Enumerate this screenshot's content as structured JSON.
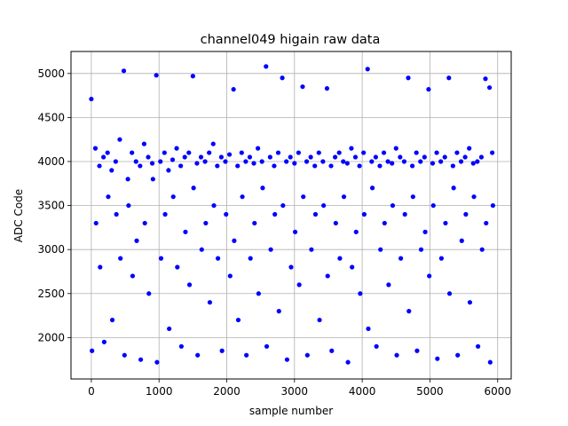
{
  "chart_data": {
    "type": "scatter",
    "title": "channel049 higain raw data",
    "xlabel": "sample number",
    "ylabel": "ADC Code",
    "xlim": [
      -300,
      6200
    ],
    "ylim": [
      1530,
      5250
    ],
    "xticks": [
      0,
      1000,
      2000,
      3000,
      4000,
      5000,
      6000
    ],
    "yticks": [
      2000,
      2500,
      3000,
      3500,
      4000,
      4500,
      5000
    ],
    "grid": true,
    "marker_color": "#0000ff",
    "series": [
      {
        "name": "",
        "x": [
          0,
          60,
          120,
          180,
          240,
          300,
          360,
          420,
          480,
          540,
          600,
          660,
          720,
          780,
          840,
          900,
          960,
          1020,
          1080,
          1140,
          1200,
          1260,
          1320,
          1380,
          1440,
          1500,
          1560,
          1620,
          1680,
          1740,
          1800,
          1860,
          1920,
          1980,
          2040,
          2100,
          2160,
          2220,
          2280,
          2340,
          2400,
          2460,
          2520,
          2580,
          2640,
          2700,
          2760,
          2820,
          2880,
          2940,
          3000,
          3060,
          3120,
          3180,
          3240,
          3300,
          3360,
          3420,
          3480,
          3540,
          3600,
          3660,
          3720,
          3780,
          3840,
          3900,
          3960,
          4020,
          4080,
          4140,
          4200,
          4260,
          4320,
          4380,
          4440,
          4500,
          4560,
          4620,
          4680,
          4740,
          4800,
          4860,
          4920,
          4980,
          5040,
          5100,
          5160,
          5220,
          5280,
          5340,
          5400,
          5460,
          5520,
          5580,
          5640,
          5700,
          5760,
          5820,
          5880,
          5920
        ],
        "y": [
          4710,
          4150,
          3950,
          4050,
          4100,
          3900,
          4000,
          4250,
          5030,
          3800,
          4100,
          4000,
          3950,
          4200,
          4050,
          3980,
          4980,
          4000,
          4100,
          3900,
          4020,
          4150,
          3950,
          4050,
          4100,
          4970,
          3980,
          4050,
          4000,
          4100,
          4200,
          3950,
          4050,
          4000,
          4080,
          4820,
          3950,
          4100,
          4000,
          4050,
          3980,
          4150,
          4000,
          5080,
          4050,
          3950,
          4100,
          4950,
          4000,
          4050,
          3980,
          4100,
          4850,
          4000,
          4050,
          3950,
          4100,
          4000,
          4830,
          3950,
          4050,
          4100,
          4000,
          3980,
          4150,
          4050,
          3950,
          4100,
          5050,
          4000,
          4050,
          3950,
          4100,
          4000,
          3980,
          4150,
          4050,
          4000,
          4950,
          3950,
          4100,
          4000,
          4050,
          4820,
          3980,
          4100,
          4000,
          4050,
          4950,
          3950,
          4100,
          4000,
          4050,
          4150,
          3980,
          4000,
          4050,
          4940,
          4840,
          4100
        ]
      },
      {
        "name": "",
        "x": [
          10,
          70,
          130,
          190,
          250,
          310,
          370,
          430,
          490,
          550,
          610,
          670,
          730,
          790,
          850,
          910,
          970,
          1030,
          1090,
          1150,
          1210,
          1270,
          1330,
          1390,
          1450,
          1510,
          1570,
          1630,
          1690,
          1750,
          1810,
          1870,
          1930,
          1990,
          2050,
          2110,
          2170,
          2230,
          2290,
          2350,
          2410,
          2470,
          2530,
          2590,
          2650,
          2710,
          2770,
          2830,
          2890,
          2950,
          3010,
          3070,
          3130,
          3190,
          3250,
          3310,
          3370,
          3430,
          3490,
          3550,
          3610,
          3670,
          3730,
          3790,
          3850,
          3910,
          3970,
          4030,
          4090,
          4150,
          4210,
          4270,
          4330,
          4390,
          4450,
          4510,
          4570,
          4630,
          4690,
          4750,
          4810,
          4870,
          4930,
          4990,
          5050,
          5110,
          5170,
          5230,
          5290,
          5350,
          5410,
          5470,
          5530,
          5590,
          5650,
          5710,
          5770,
          5830,
          5890,
          5930
        ],
        "y": [
          1850,
          3300,
          2800,
          1950,
          3600,
          2200,
          3400,
          2900,
          1800,
          3500,
          2700,
          3100,
          1750,
          3300,
          2500,
          3800,
          1720,
          2900,
          3400,
          2100,
          3600,
          2800,
          1900,
          3200,
          2600,
          3700,
          1800,
          3000,
          3300,
          2400,
          3500,
          2900,
          1850,
          3400,
          2700,
          3100,
          2200,
          3600,
          1800,
          2900,
          3300,
          2500,
          3700,
          1900,
          3000,
          3400,
          2300,
          3500,
          1750,
          2800,
          3200,
          2600,
          3600,
          1800,
          3000,
          3400,
          2200,
          3500,
          2700,
          1850,
          3300,
          2900,
          3600,
          1720,
          2800,
          3200,
          2500,
          3400,
          2100,
          3700,
          1900,
          3000,
          3300,
          2600,
          3500,
          1800,
          2900,
          3400,
          2300,
          3600,
          1850,
          3000,
          3200,
          2700,
          3500,
          1760,
          2900,
          3300,
          2500,
          3700,
          1800,
          3100,
          3400,
          2400,
          3600,
          1900,
          3000,
          3300,
          1720,
          3500
        ]
      }
    ]
  }
}
